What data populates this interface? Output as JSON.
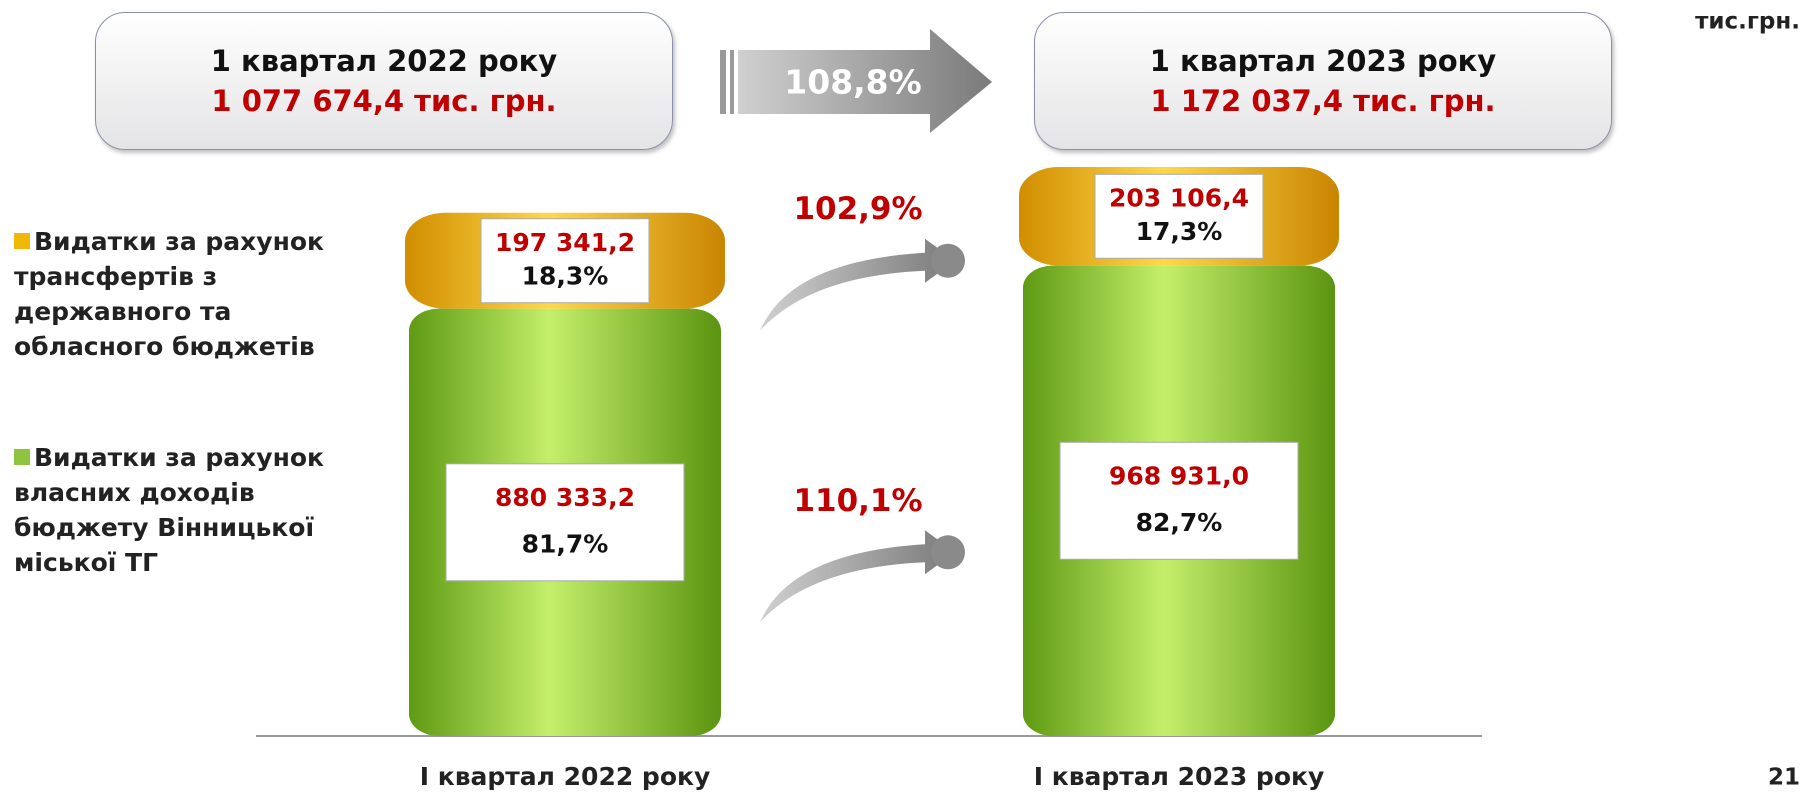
{
  "chart_data": {
    "type": "bar",
    "stacked": true,
    "unit": "тис.грн.",
    "page_number": "21",
    "headers": [
      {
        "title": "1 квартал 2022 року",
        "total": "1 077 674,4 тис. грн."
      },
      {
        "title": "1 квартал 2023 року",
        "total": "1 172 037,4 тис. грн."
      }
    ],
    "total_growth": "108,8%",
    "categories": [
      "I квартал 2022 року",
      "I квартал 2023 року"
    ],
    "series": [
      {
        "name": "Видатки за рахунок трансфертів з державного та обласного бюджетів",
        "color": "#f2b705",
        "values": [
          197341.2,
          203106.4
        ],
        "value_labels": [
          "197 341,2",
          "203 106,4"
        ],
        "shares": [
          "18,3%",
          "17,3%"
        ],
        "growth": "102,9%"
      },
      {
        "name": "Видатки за рахунок власних доходів бюджету Вінницької міської ТГ",
        "color": "#8cc63f",
        "values": [
          880333.2,
          968931.0
        ],
        "value_labels": [
          "880 333,2",
          "968 931,0"
        ],
        "shares": [
          "81,7%",
          "82,7%"
        ],
        "growth": "110,1%"
      }
    ]
  }
}
